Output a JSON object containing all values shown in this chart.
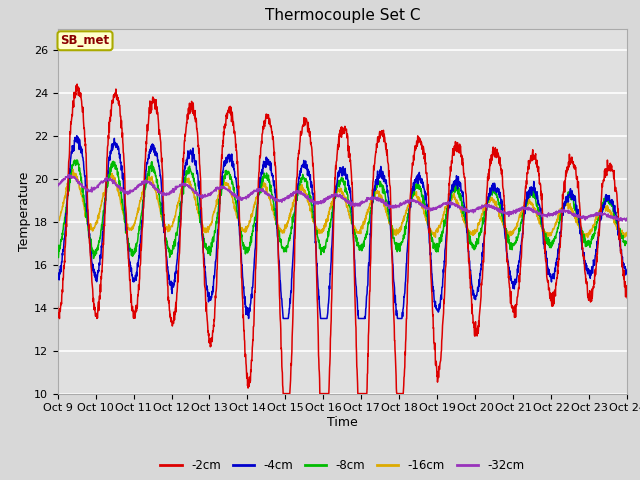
{
  "title": "Thermocouple Set C",
  "xlabel": "Time",
  "ylabel": "Temperature",
  "annotation": "SB_met",
  "ylim": [
    10,
    27
  ],
  "yticks": [
    10,
    12,
    14,
    16,
    18,
    20,
    22,
    24,
    26
  ],
  "xtick_labels": [
    "Oct 9",
    "Oct 10",
    "Oct 11",
    "Oct 12",
    "Oct 13",
    "Oct 14",
    "Oct 15",
    "Oct 16",
    "Oct 17",
    "Oct 18",
    "Oct 19",
    "Oct 20",
    "Oct 21",
    "Oct 22",
    "Oct 23",
    "Oct 24"
  ],
  "series": [
    {
      "label": "-2cm",
      "color": "#dd0000"
    },
    {
      "label": "-4cm",
      "color": "#0000cc"
    },
    {
      "label": "-8cm",
      "color": "#00bb00"
    },
    {
      "label": "-16cm",
      "color": "#ddaa00"
    },
    {
      "label": "-32cm",
      "color": "#9933bb"
    }
  ],
  "background_color": "#e8e8e8",
  "plot_bg_color": "#e0e0e0",
  "grid_color": "#ffffff",
  "title_fontsize": 11,
  "axis_label_fontsize": 9,
  "tick_fontsize": 8
}
